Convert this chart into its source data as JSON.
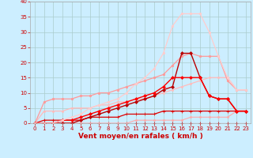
{
  "title": "",
  "xlabel": "Vent moyen/en rafales ( km/h )",
  "background_color": "#cceeff",
  "grid_color": "#aacccc",
  "x": [
    0,
    1,
    2,
    3,
    4,
    5,
    6,
    7,
    8,
    9,
    10,
    11,
    12,
    13,
    14,
    15,
    16,
    17,
    18,
    19,
    20,
    21,
    22,
    23
  ],
  "lines": [
    {
      "y": [
        0,
        0,
        0,
        0,
        0,
        0,
        0,
        0,
        0,
        0,
        0,
        0,
        0,
        0,
        0,
        0,
        0,
        0,
        0,
        0,
        0,
        0,
        0,
        0
      ],
      "color": "#cc0000",
      "lw": 0.8,
      "marker": "+",
      "ms": 2.5
    },
    {
      "y": [
        0,
        0,
        0,
        0,
        0,
        0,
        0,
        0,
        0,
        0,
        0,
        1,
        1,
        1,
        1,
        1,
        1,
        2,
        2,
        2,
        2,
        2,
        4,
        4
      ],
      "color": "#ffaaaa",
      "lw": 0.8,
      "marker": "o",
      "ms": 1.5
    },
    {
      "y": [
        0,
        1,
        1,
        1,
        1,
        1,
        2,
        2,
        2,
        2,
        3,
        3,
        3,
        3,
        4,
        4,
        4,
        4,
        4,
        4,
        4,
        4,
        4,
        4
      ],
      "color": "#dd0000",
      "lw": 0.9,
      "marker": "+",
      "ms": 2.5
    },
    {
      "y": [
        0,
        4,
        4,
        4,
        5,
        5,
        5,
        6,
        6,
        7,
        7,
        8,
        8,
        9,
        10,
        11,
        12,
        13,
        14,
        15,
        15,
        15,
        11,
        11
      ],
      "color": "#ffbbbb",
      "lw": 0.9,
      "marker": "o",
      "ms": 1.5
    },
    {
      "y": [
        0,
        7,
        8,
        8,
        8,
        9,
        9,
        10,
        10,
        11,
        12,
        13,
        14,
        15,
        16,
        19,
        22,
        23,
        22,
        22,
        22,
        14,
        11,
        11
      ],
      "color": "#ff9999",
      "lw": 0.9,
      "marker": "o",
      "ms": 1.8
    },
    {
      "y": [
        0,
        0,
        0,
        0,
        0,
        1,
        2,
        3,
        4,
        5,
        6,
        7,
        8,
        9,
        11,
        12,
        23,
        23,
        15,
        9,
        8,
        8,
        4,
        4
      ],
      "color": "#bb0000",
      "lw": 1.0,
      "marker": "D",
      "ms": 2.0
    },
    {
      "y": [
        0,
        0,
        0,
        1,
        1,
        2,
        3,
        4,
        5,
        6,
        7,
        8,
        9,
        10,
        12,
        15,
        15,
        15,
        15,
        9,
        8,
        8,
        4,
        4
      ],
      "color": "#ff0000",
      "lw": 1.0,
      "marker": "D",
      "ms": 2.0
    },
    {
      "y": [
        0,
        0,
        0,
        1,
        2,
        3,
        5,
        6,
        7,
        8,
        10,
        13,
        15,
        18,
        23,
        32,
        36,
        36,
        36,
        30,
        22,
        15,
        11,
        11
      ],
      "color": "#ffcccc",
      "lw": 0.9,
      "marker": "o",
      "ms": 1.8
    }
  ],
  "xlim": [
    -0.5,
    23.5
  ],
  "ylim": [
    0,
    40
  ],
  "yticks": [
    0,
    5,
    10,
    15,
    20,
    25,
    30,
    35,
    40
  ],
  "xticks": [
    0,
    1,
    2,
    3,
    4,
    5,
    6,
    7,
    8,
    9,
    10,
    11,
    12,
    13,
    14,
    15,
    16,
    17,
    18,
    19,
    20,
    21,
    22,
    23
  ],
  "tick_color": "#cc0000",
  "label_color": "#cc0000",
  "xlabel_fontsize": 6.5,
  "tick_fontsize": 5.0
}
